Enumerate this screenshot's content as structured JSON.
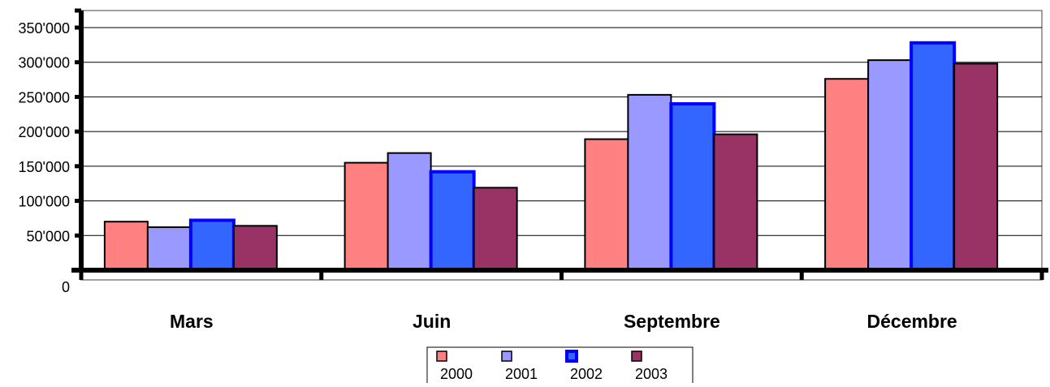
{
  "chart_data": {
    "type": "bar",
    "categories": [
      "Mars",
      "Juin",
      "Septembre",
      "Décembre"
    ],
    "series": [
      {
        "name": "2000",
        "values": [
          70000,
          155000,
          189000,
          276000
        ],
        "color": "#FF8080",
        "border": "#000000"
      },
      {
        "name": "2001",
        "values": [
          62000,
          169000,
          253000,
          303000
        ],
        "color": "#9999FF",
        "border": "#000000"
      },
      {
        "name": "2002",
        "values": [
          72000,
          142000,
          240000,
          328000
        ],
        "color": "#3366FF",
        "border": "#0000FF"
      },
      {
        "name": "2003",
        "values": [
          64000,
          119000,
          196000,
          298000
        ],
        "color": "#993366",
        "border": "#000000"
      }
    ],
    "ylim": [
      0,
      350000
    ],
    "y_ticks": [
      0,
      50000,
      100000,
      150000,
      200000,
      250000,
      300000,
      350000
    ],
    "y_tick_labels": [
      "0",
      "50'000",
      "100'000",
      "150'000",
      "200'000",
      "250'000",
      "300'000",
      "350'000"
    ],
    "grid": true,
    "legend_position": "bottom",
    "title": "",
    "xlabel": "",
    "ylabel": ""
  }
}
